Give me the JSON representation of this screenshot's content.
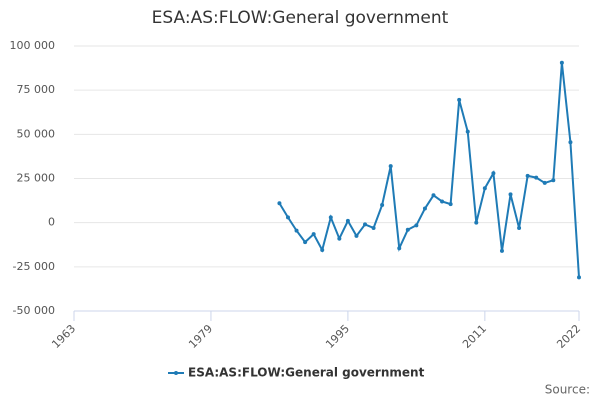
{
  "chart_data": {
    "type": "line",
    "title": "ESA:AS:FLOW:General government",
    "x": [
      1987,
      1988,
      1989,
      1990,
      1991,
      1992,
      1993,
      1994,
      1995,
      1996,
      1997,
      1998,
      1999,
      2000,
      2001,
      2002,
      2003,
      2004,
      2005,
      2006,
      2007,
      2008,
      2009,
      2010,
      2011,
      2012,
      2013,
      2014,
      2015,
      2016,
      2017,
      2018,
      2019,
      2020,
      2021,
      2022
    ],
    "series": [
      {
        "name": "ESA:AS:FLOW:General government",
        "color": "#1f7bb6",
        "values": [
          11000,
          3000,
          -4500,
          -11000,
          -6500,
          -15500,
          3000,
          -9000,
          1000,
          -7500,
          -1000,
          -3000,
          10000,
          32000,
          -14500,
          -4000,
          -1500,
          8000,
          15500,
          12000,
          10500,
          69500,
          51500,
          0,
          19500,
          28000,
          -16000,
          16000,
          -3000,
          26500,
          25500,
          22500,
          24000,
          90500,
          45500,
          -31000
        ]
      }
    ],
    "xlim": [
      1963,
      2022
    ],
    "xticks": [
      1963,
      1979,
      1995,
      2011,
      2022
    ],
    "ylim": [
      -50000,
      100000
    ],
    "yticks": [
      {
        "value": -50000,
        "label": "-50 000"
      },
      {
        "value": -25000,
        "label": "-25 000"
      },
      0,
      {
        "value": 25000,
        "label": "25 000"
      },
      {
        "value": 50000,
        "label": "50 000"
      },
      {
        "value": 75000,
        "label": "75 000"
      },
      {
        "value": 100000,
        "label": "100 000"
      }
    ],
    "grid": true,
    "legend": "bottom",
    "source": "Source:"
  }
}
